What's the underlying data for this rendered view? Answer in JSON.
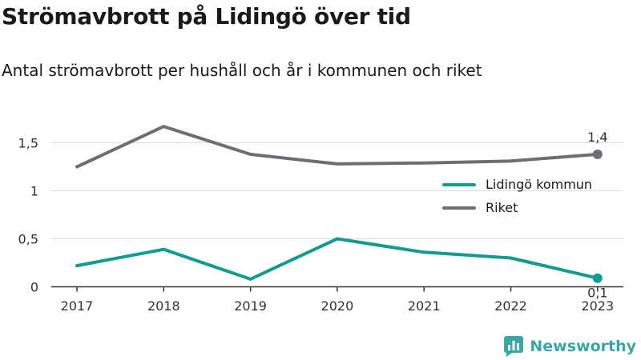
{
  "header": {
    "title": "Strömavbrott på Lidingö över tid",
    "subtitle": "Antal strömavbrott per hushåll och år i kommunen och riket"
  },
  "brand": {
    "name": "Newsworthy",
    "color": "#3aa6a6",
    "icon": "bar-chart-logo-icon"
  },
  "colors": {
    "lidingo": "#129b91",
    "riket": "#6e6d72",
    "grid": "#dddddd",
    "axis": "#333333"
  },
  "chart_data": {
    "type": "line",
    "title": "Strömavbrott på Lidingö över tid",
    "subtitle": "Antal strömavbrott per hushåll och år i kommunen och riket",
    "categories": [
      "2017",
      "2018",
      "2019",
      "2020",
      "2021",
      "2022",
      "2023"
    ],
    "series": [
      {
        "name": "Lidingö kommun",
        "values": [
          0.22,
          0.39,
          0.08,
          0.5,
          0.36,
          0.3,
          0.09
        ],
        "end_label": "0,1"
      },
      {
        "name": "Riket",
        "values": [
          1.25,
          1.67,
          1.38,
          1.28,
          1.29,
          1.31,
          1.38
        ],
        "end_label": "1,4"
      }
    ],
    "yticks": [
      {
        "value": 0,
        "label": "0"
      },
      {
        "value": 0.5,
        "label": "0,5"
      },
      {
        "value": 1,
        "label": "1"
      },
      {
        "value": 1.5,
        "label": "1,5"
      }
    ],
    "ylim": [
      0,
      1.75
    ],
    "grid": true,
    "legend_position": "right"
  }
}
